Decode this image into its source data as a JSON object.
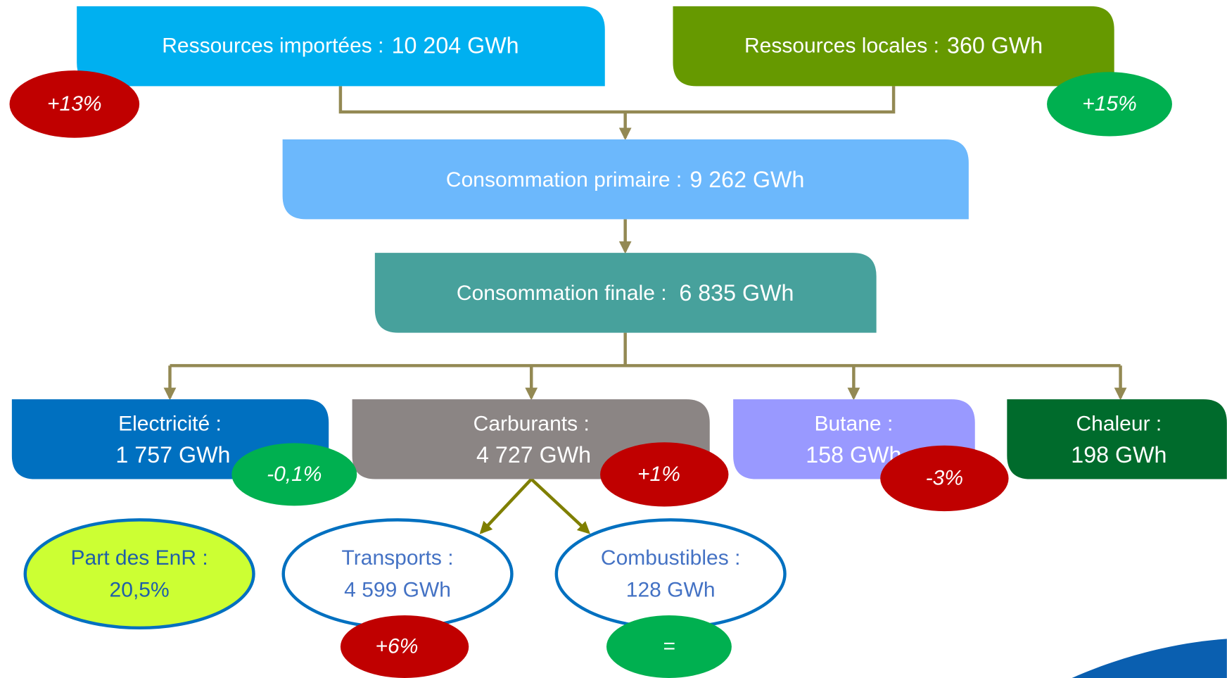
{
  "resources": {
    "imported": {
      "label": "Ressources importées :",
      "value": "10 204 GWh",
      "change": "+13%"
    },
    "local": {
      "label": "Ressources locales :",
      "value": "360 GWh",
      "change": "+15%"
    }
  },
  "primary": {
    "label": "Consommation primaire :",
    "value": "9 262 GWh"
  },
  "final": {
    "label": "Consommation finale :",
    "value": "6 835 GWh"
  },
  "branches": [
    {
      "label": "Electricité :",
      "value": "1 757 GWh",
      "change": "-0,1%"
    },
    {
      "label": "Carburants :",
      "value": "4 727 GWh",
      "change": "+1%"
    },
    {
      "label": "Butane :",
      "value": "158 GWh",
      "change": "-3%"
    },
    {
      "label": "Chaleur :",
      "value": "198 GWh"
    }
  ],
  "fuel_uses": [
    {
      "label": "Transports :",
      "value": "4 599 GWh",
      "change": "+6%"
    },
    {
      "label": "Combustibles :",
      "value": "128 GWh",
      "change": "="
    }
  ],
  "renewable_share": {
    "label": "Part des EnR :",
    "value": "20,5%"
  }
}
